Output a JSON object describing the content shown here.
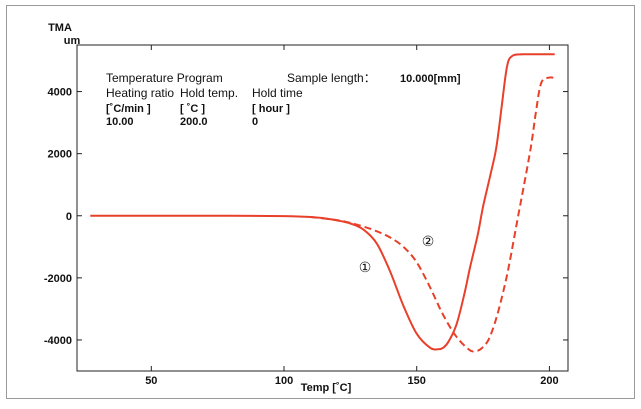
{
  "chart_data": {
    "type": "line",
    "ylabel": "TMA",
    "yunit": "um",
    "xlabel": "Temp [˚C]",
    "xlim": [
      22,
      207
    ],
    "ylim": [
      -5000,
      5500
    ],
    "xticks": [
      "50",
      "100",
      "150",
      "200"
    ],
    "yticks": [
      "4000",
      "2000",
      "0",
      "-2000",
      "-4000"
    ],
    "grid": false,
    "header": {
      "program_title": "Temperature Program",
      "sample_length_label": "Sample length：",
      "sample_length_value": "10.000[mm]",
      "col1_title": "Heating ratio",
      "col2_title": "Hold temp.",
      "col3_title": "Hold time",
      "col1_unit": "[˚C/min ]",
      "col2_unit": "[ ˚C  ]",
      "col3_unit": "[ hour ]",
      "col1_value": "10.00",
      "col2_value": "200.0",
      "col3_value": "0"
    },
    "series": [
      {
        "label": "①",
        "style": "solid",
        "color": "#e8402a",
        "x": [
          27,
          50,
          80,
          100,
          110,
          115,
          120,
          125,
          130,
          135,
          140,
          145,
          150,
          155,
          158,
          160,
          162,
          165,
          168,
          170,
          173,
          175,
          178,
          180,
          182,
          184,
          186,
          190,
          195,
          200,
          202
        ],
        "y": [
          0,
          0,
          0,
          -10,
          -40,
          -80,
          -150,
          -250,
          -450,
          -900,
          -1800,
          -2900,
          -3800,
          -4250,
          -4300,
          -4250,
          -4050,
          -3500,
          -2500,
          -1700,
          -600,
          300,
          1400,
          2200,
          3500,
          4800,
          5150,
          5200,
          5200,
          5200,
          5200
        ]
      },
      {
        "label": "②",
        "style": "dashed",
        "color": "#e8402a",
        "x": [
          110,
          120,
          125,
          130,
          135,
          140,
          145,
          150,
          155,
          160,
          165,
          170,
          172,
          174,
          177,
          180,
          183,
          185,
          188,
          190,
          193,
          195,
          197,
          200,
          202
        ],
        "y": [
          -40,
          -140,
          -230,
          -350,
          -500,
          -700,
          -1000,
          -1500,
          -2300,
          -3200,
          -3900,
          -4330,
          -4350,
          -4300,
          -4000,
          -3300,
          -2300,
          -1500,
          -100,
          800,
          2200,
          3400,
          4300,
          4450,
          4430
        ]
      }
    ]
  }
}
